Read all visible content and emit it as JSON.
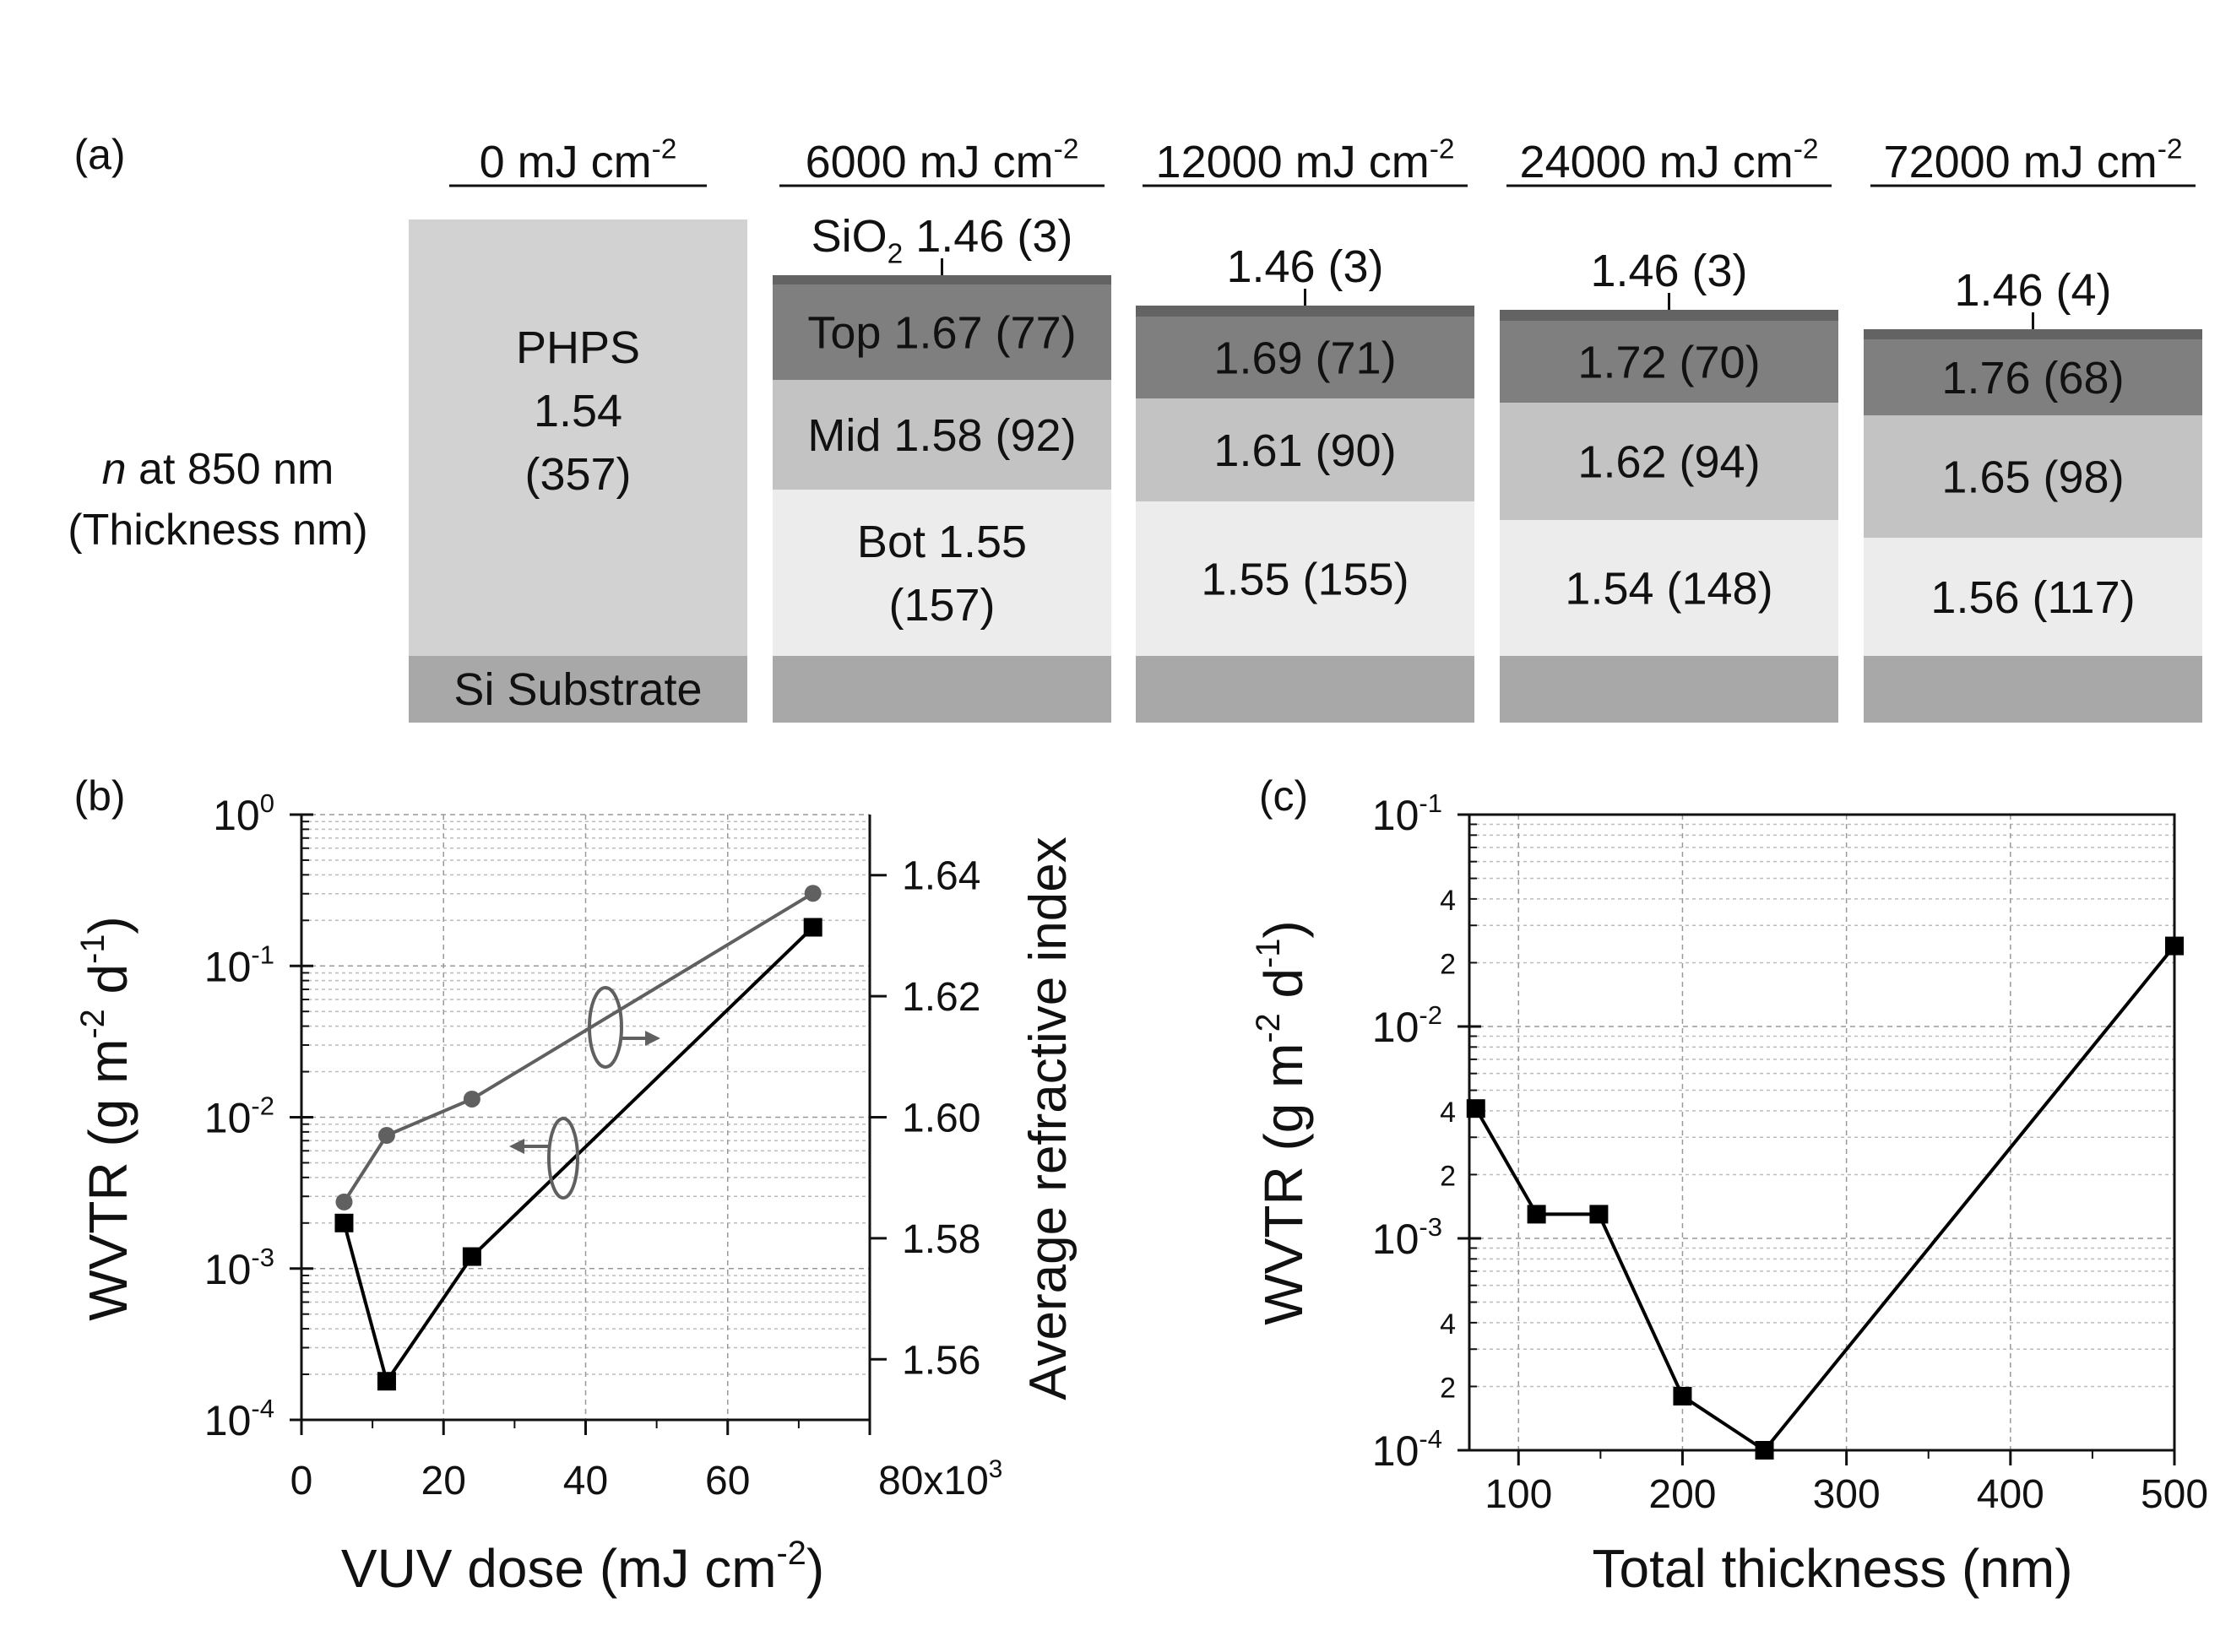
{
  "colors": {
    "sio2": "#636363",
    "top": "#7f7f7f",
    "mid": "#c3c3c3",
    "bot": "#ececec",
    "phps": "#d2d2d2",
    "substrate": "#a8a8a8",
    "wvtr_series": "#000000",
    "index_series": "#606060"
  },
  "panel_a": {
    "label": "(a)",
    "row_label": [
      "n at 850 nm",
      "(Thickness nm)"
    ],
    "columns": [
      {
        "dose": "0 mJ cm",
        "sup": "-2",
        "layers": {
          "phps_name": "PHPS",
          "phps_n": "1.54",
          "phps_t": "(357)"
        },
        "substrate": "Si Substrate"
      },
      {
        "dose": "6000 mJ cm",
        "sup": "-2",
        "sio2_prefix": "SiO",
        "sio2_sub": "2",
        "sio2": "1.46 (3)",
        "top": "Top 1.67 (77)",
        "mid": "Mid 1.58 (92)",
        "bot": [
          "Bot 1.55",
          "(157)"
        ]
      },
      {
        "dose": "12000 mJ cm",
        "sup": "-2",
        "sio2": "1.46 (3)",
        "top": "1.69 (71)",
        "mid": "1.61 (90)",
        "bot": [
          "1.55 (155)"
        ]
      },
      {
        "dose": "24000 mJ cm",
        "sup": "-2",
        "sio2": "1.46 (3)",
        "top": "1.72 (70)",
        "mid": "1.62 (94)",
        "bot": [
          "1.54 (148)"
        ]
      },
      {
        "dose": "72000 mJ cm",
        "sup": "-2",
        "sio2": "1.46 (4)",
        "top": "1.76 (68)",
        "mid": "1.65 (98)",
        "bot": [
          "1.56 (117)"
        ]
      }
    ]
  },
  "chart_data": [
    {
      "panel": "(b)",
      "type": "line",
      "xlabel": "VUV dose (mJ cm",
      "xlabel_sup": "-2",
      "xlabel_close": ")",
      "ylabel": "WVTR (g m",
      "ylabel_sup1": "-2",
      "ylabel_mid": " d",
      "ylabel_sup2": "-1",
      "ylabel_close": ")",
      "y2label": "Average refractive index",
      "xlim": [
        0,
        80000
      ],
      "ylim": [
        0.0001,
        1
      ],
      "yscale": "log",
      "y2lim": [
        1.55,
        1.65
      ],
      "xticks": [
        "0",
        "20",
        "40",
        "60",
        "80x10"
      ],
      "xtick_last_sup": "3",
      "yticks": [
        {
          "base": "10",
          "exp": "0"
        },
        {
          "base": "10",
          "exp": "-1"
        },
        {
          "base": "10",
          "exp": "-2"
        },
        {
          "base": "10",
          "exp": "-3"
        },
        {
          "base": "10",
          "exp": "-4"
        }
      ],
      "y2ticks": [
        "1.64",
        "1.62",
        "1.60",
        "1.58",
        "1.56"
      ],
      "grid": true,
      "series": [
        {
          "axis": "left",
          "marker": "square",
          "x": [
            6000,
            12000,
            24000,
            72000
          ],
          "y": [
            0.002,
            0.00018,
            0.0012,
            0.18
          ]
        },
        {
          "axis": "right",
          "marker": "circle",
          "x": [
            6000,
            12000,
            24000,
            72000
          ],
          "y": [
            1.586,
            1.597,
            1.603,
            1.637
          ]
        }
      ]
    },
    {
      "panel": "(c)",
      "type": "line",
      "xlabel": "Total thickness (nm)",
      "ylabel": "WVTR (g m",
      "ylabel_sup1": "-2",
      "ylabel_mid": " d",
      "ylabel_sup2": "-1",
      "ylabel_close": ")",
      "xlim": [
        70,
        500
      ],
      "ylim": [
        0.0001,
        0.1
      ],
      "yscale": "log",
      "xticks": [
        "100",
        "200",
        "300",
        "400",
        "500"
      ],
      "yticks": [
        {
          "base": "10",
          "exp": "-1"
        },
        {
          "base": "10",
          "exp": "-2"
        },
        {
          "base": "10",
          "exp": "-3"
        },
        {
          "base": "10",
          "exp": "-4"
        }
      ],
      "yminor_labels": [
        "4",
        "2",
        "4",
        "2",
        "4",
        "2"
      ],
      "grid": true,
      "series": [
        {
          "marker": "square",
          "x": [
            74,
            111,
            149,
            200,
            250,
            500
          ],
          "y": [
            0.0041,
            0.0013,
            0.0013,
            0.00018,
            0.0001,
            0.024
          ]
        }
      ]
    }
  ]
}
